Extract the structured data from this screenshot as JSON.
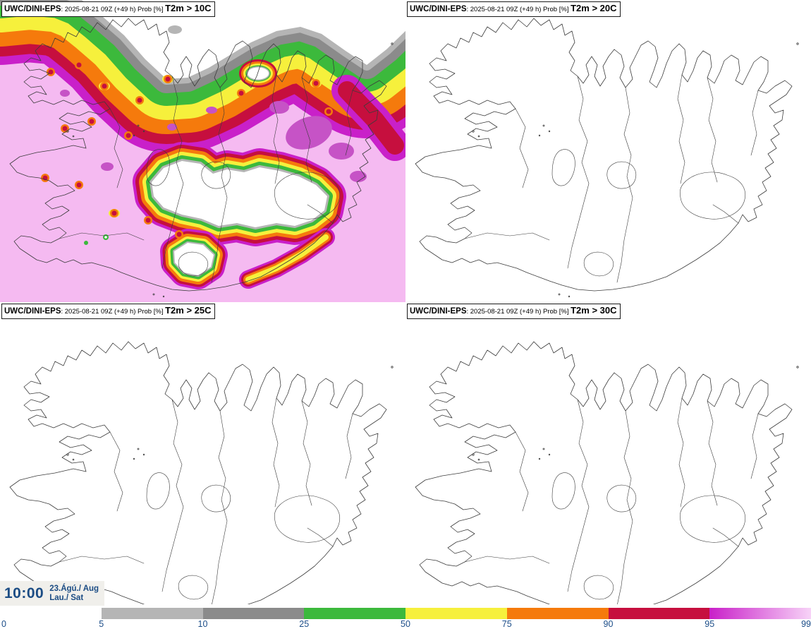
{
  "panels": [
    {
      "model": "UWC/DINI-EPS",
      "run_info": ": 2025-08-21 09Z (+49 h) Prob [%] ",
      "variable": "T2m > 10C"
    },
    {
      "model": "UWC/DINI-EPS",
      "run_info": ": 2025-08-21 09Z (+49 h) Prob [%] ",
      "variable": "T2m > 20C"
    },
    {
      "model": "UWC/DINI-EPS",
      "run_info": ": 2025-08-21 09Z (+49 h) Prob [%] ",
      "variable": "T2m > 25C"
    },
    {
      "model": "UWC/DINI-EPS",
      "run_info": ": 2025-08-21 09Z (+49 h) Prob [%] ",
      "variable": "T2m > 30C"
    }
  ],
  "footer": {
    "time": "10:00",
    "date": "23.Ágú./ Aug",
    "day": "Lau./ Sat"
  },
  "legend": {
    "ticks": [
      "0",
      "5",
      "10",
      "25",
      "50",
      "75",
      "90",
      "95",
      "99"
    ],
    "segments": [
      {
        "range": "0-5",
        "color": "#ffffff"
      },
      {
        "range": "5-10",
        "color": "#b5b5b5"
      },
      {
        "range": "10-25",
        "color": "#8b8b8b"
      },
      {
        "range": "25-50",
        "color": "#3cb93c"
      },
      {
        "range": "50-75",
        "color": "#f6f03c"
      },
      {
        "range": "75-90",
        "color": "#f57a0c"
      },
      {
        "range": "90-95",
        "color": "#c60f3e"
      },
      {
        "range": "95-99",
        "gradient": true,
        "from": "#c920c9",
        "to": "#f7d3f7"
      }
    ],
    "field_colors": {
      "prob_gt99": "#f5baf1",
      "prob_95_99": "#c920c9",
      "prob_purple_patch": "#c653c6",
      "prob_90_95": "#c60f3e",
      "prob_75_90": "#f57a0c",
      "prob_50_75": "#f6f03c",
      "prob_25_50": "#3cb93c",
      "prob_10_25": "#8b8b8b",
      "prob_5_10": "#b5b5b5",
      "prob_0_5": "#ffffff"
    }
  }
}
